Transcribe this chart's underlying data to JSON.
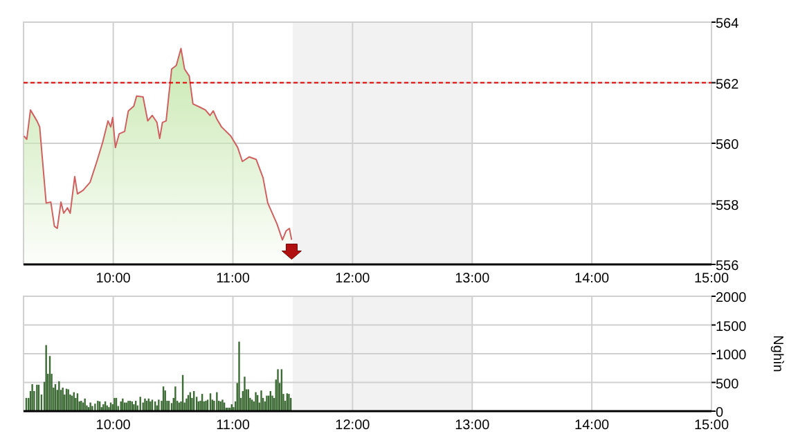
{
  "chart_data": [
    {
      "type": "area",
      "x": [
        9.254,
        9.277,
        9.308,
        9.362,
        9.385,
        9.439,
        9.478,
        9.508,
        9.532,
        9.563,
        9.586,
        9.617,
        9.64,
        9.678,
        9.701,
        9.748,
        9.806,
        9.863,
        9.91,
        9.956,
        9.979,
        9.995,
        10.018,
        10.049,
        10.095,
        10.126,
        10.172,
        10.195,
        10.249,
        10.288,
        10.326,
        10.365,
        10.388,
        10.411,
        10.442,
        10.465,
        10.488,
        10.527,
        10.566,
        10.596,
        10.635,
        10.666,
        10.72,
        10.77,
        10.809,
        10.836,
        10.866,
        10.905,
        10.982,
        11.04,
        11.079,
        11.137,
        11.194,
        11.252,
        11.291,
        11.368,
        11.414,
        11.445,
        11.472,
        11.491
      ],
      "series": [
        {
          "color": "#c8e8b0",
          "values": [
            560.24,
            560.13,
            561.1,
            560.74,
            560.54,
            558.03,
            558.06,
            557.26,
            557.19,
            558.06,
            557.69,
            557.87,
            557.69,
            558.9,
            558.33,
            558.45,
            558.71,
            559.4,
            560.01,
            560.74,
            560.54,
            560.85,
            559.86,
            560.31,
            560.39,
            561.07,
            561.23,
            561.56,
            561.53,
            560.74,
            560.92,
            560.69,
            560.16,
            560.69,
            560.74,
            561.61,
            562.45,
            562.57,
            563.13,
            562.45,
            562.22,
            561.3,
            561.2,
            561.1,
            560.92,
            561.07,
            560.8,
            560.54,
            560.24,
            559.86,
            559.4,
            559.55,
            559.47,
            558.86,
            558.03,
            557.34,
            556.81,
            557.11,
            557.19,
            556.81
          ]
        }
      ],
      "xlim": [
        9.25,
        15
      ],
      "xticks": [
        {
          "value": 10,
          "label": "10:00"
        },
        {
          "value": 11,
          "label": "11:00"
        },
        {
          "value": 12,
          "label": "12:00"
        },
        {
          "value": 13,
          "label": "13:00"
        },
        {
          "value": 14,
          "label": "14:00"
        },
        {
          "value": 15,
          "label": "15:00"
        }
      ],
      "ylim": [
        556,
        564
      ],
      "yticks": [
        556,
        558,
        560,
        562,
        564
      ],
      "grid": true,
      "ref_lines": [
        {
          "axis": "y",
          "value": 562,
          "color": "#dd0000",
          "line_style": "dashed"
        }
      ],
      "bands": [
        {
          "axis": "x",
          "from": 11.5,
          "to": 13,
          "color": "#f2f2f2"
        }
      ]
    },
    {
      "type": "bar",
      "ylabel": "Nghìn",
      "color": "#3d6b35",
      "x": [
        9.273,
        9.292,
        9.308,
        9.323,
        9.339,
        9.362,
        9.377,
        9.4,
        9.424,
        9.439,
        9.454,
        9.47,
        9.485,
        9.501,
        9.516,
        9.532,
        9.547,
        9.563,
        9.578,
        9.593,
        9.609,
        9.624,
        9.64,
        9.655,
        9.671,
        9.686,
        9.701,
        9.717,
        9.732,
        9.748,
        9.763,
        9.779,
        9.794,
        9.809,
        9.825,
        9.848,
        9.871,
        9.887,
        9.902,
        9.917,
        9.933,
        9.948,
        9.964,
        9.979,
        9.995,
        10.01,
        10.025,
        10.041,
        10.064,
        10.079,
        10.095,
        10.11,
        10.126,
        10.141,
        10.157,
        10.172,
        10.188,
        10.203,
        10.226,
        10.249,
        10.265,
        10.28,
        10.296,
        10.311,
        10.326,
        10.35,
        10.365,
        10.38,
        10.404,
        10.419,
        10.434,
        10.45,
        10.465,
        10.488,
        10.504,
        10.519,
        10.535,
        10.55,
        10.566,
        10.581,
        10.596,
        10.612,
        10.627,
        10.643,
        10.658,
        10.674,
        10.697,
        10.712,
        10.728,
        10.743,
        10.758,
        10.774,
        10.789,
        10.812,
        10.828,
        10.843,
        10.866,
        10.882,
        10.897,
        10.913,
        10.928,
        10.944,
        10.959,
        10.975,
        10.99,
        11.005,
        11.021,
        11.036,
        11.052,
        11.067,
        11.083,
        11.098,
        11.113,
        11.129,
        11.144,
        11.16,
        11.175,
        11.191,
        11.206,
        11.221,
        11.237,
        11.252,
        11.268,
        11.283,
        11.299,
        11.314,
        11.33,
        11.345,
        11.36,
        11.376,
        11.391,
        11.407,
        11.422,
        11.437,
        11.453,
        11.468,
        11.484
      ],
      "values": [
        230,
        230,
        350,
        470,
        350,
        460,
        460,
        290,
        510,
        1150,
        650,
        960,
        650,
        410,
        470,
        370,
        520,
        370,
        410,
        290,
        390,
        380,
        290,
        270,
        330,
        230,
        310,
        170,
        180,
        150,
        220,
        100,
        70,
        150,
        90,
        130,
        180,
        170,
        70,
        120,
        170,
        100,
        70,
        150,
        120,
        230,
        230,
        90,
        170,
        220,
        150,
        150,
        180,
        180,
        170,
        120,
        180,
        100,
        250,
        150,
        220,
        180,
        220,
        170,
        200,
        170,
        100,
        200,
        180,
        430,
        360,
        180,
        180,
        140,
        230,
        430,
        180,
        150,
        170,
        630,
        150,
        220,
        280,
        330,
        230,
        350,
        250,
        170,
        180,
        300,
        170,
        180,
        200,
        310,
        200,
        180,
        330,
        180,
        170,
        200,
        150,
        60,
        60,
        60,
        120,
        70,
        170,
        490,
        1210,
        230,
        350,
        600,
        380,
        380,
        230,
        200,
        170,
        330,
        280,
        150,
        360,
        230,
        170,
        270,
        270,
        350,
        270,
        230,
        550,
        730,
        490,
        730,
        300,
        180,
        310,
        300,
        230
      ],
      "xlim": [
        9.25,
        15
      ],
      "xticks": [
        {
          "value": 10,
          "label": "10:00"
        },
        {
          "value": 11,
          "label": "11:00"
        },
        {
          "value": 12,
          "label": "12:00"
        },
        {
          "value": 13,
          "label": "13:00"
        },
        {
          "value": 14,
          "label": "14:00"
        },
        {
          "value": 15,
          "label": "15:00"
        }
      ],
      "ylim": [
        0,
        2000
      ],
      "yticks": [
        0,
        500,
        1000,
        1500,
        2000
      ],
      "grid": true,
      "bands": [
        {
          "axis": "x",
          "from": 11.5,
          "to": 13,
          "color": "#f2f2f2"
        }
      ]
    }
  ]
}
